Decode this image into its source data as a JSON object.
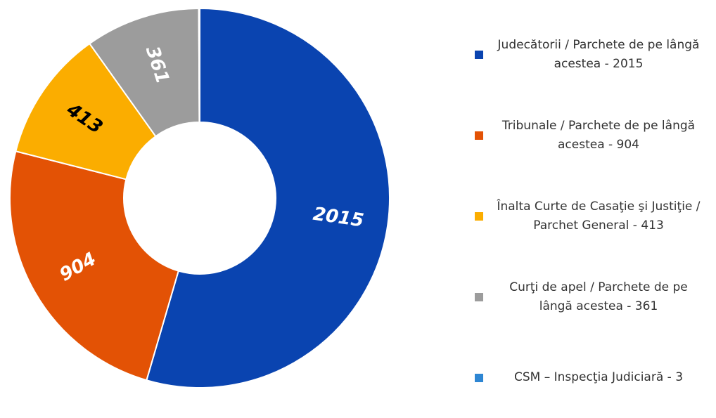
{
  "chart_data": {
    "type": "donut",
    "categories": [
      "Judecătorii / Parchete de pe lângă acestea - 2015",
      "Tribunale / Parchete de pe lângă acestea - 904",
      "Înalta Curte de Casaţie şi Justiţie / Parchet General - 413",
      "Curţi de apel / Parchete de pe lângă acestea - 361",
      "CSM – Inspecţia Judiciară - 3"
    ],
    "values": [
      2015,
      904,
      413,
      361,
      3
    ],
    "colors": [
      "#0a44b0",
      "#e35205",
      "#fbad00",
      "#9c9c9c",
      "#2e86d3"
    ],
    "label_colors": [
      "#ffffff",
      "#ffffff",
      "#000000",
      "#ffffff",
      "#ffffff"
    ],
    "legend": "right"
  }
}
